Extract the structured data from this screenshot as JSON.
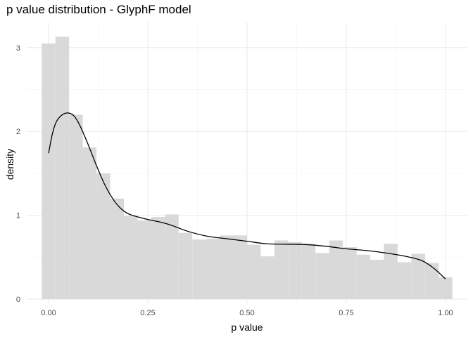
{
  "chart_data": {
    "type": "bar",
    "title": "p value distribution - GlyphF model",
    "xlabel": "p value",
    "ylabel": "density",
    "xlim": [
      -0.055,
      1.055
    ],
    "ylim": [
      -0.05,
      3.3
    ],
    "x_ticks": [
      0.0,
      0.25,
      0.5,
      0.75,
      1.0
    ],
    "x_tick_labels": [
      "0.00",
      "0.25",
      "0.50",
      "0.75",
      "1.00"
    ],
    "y_ticks": [
      0,
      1,
      2,
      3
    ],
    "y_tick_labels": [
      "0",
      "1",
      "2",
      "3"
    ],
    "grid": true,
    "legend": "none",
    "bin_width": 0.0345,
    "bins": [
      {
        "x0": -0.0172,
        "x1": 0.0172,
        "density": 3.05
      },
      {
        "x0": 0.0172,
        "x1": 0.0517,
        "density": 3.13
      },
      {
        "x0": 0.0517,
        "x1": 0.0862,
        "density": 2.2
      },
      {
        "x0": 0.0862,
        "x1": 0.1207,
        "density": 1.81
      },
      {
        "x0": 0.1207,
        "x1": 0.1552,
        "density": 1.5
      },
      {
        "x0": 0.1552,
        "x1": 0.1897,
        "density": 1.2
      },
      {
        "x0": 0.1897,
        "x1": 0.2241,
        "density": 0.99
      },
      {
        "x0": 0.2241,
        "x1": 0.2586,
        "density": 0.94
      },
      {
        "x0": 0.2586,
        "x1": 0.2931,
        "density": 0.98
      },
      {
        "x0": 0.2931,
        "x1": 0.3276,
        "density": 1.01
      },
      {
        "x0": 0.3276,
        "x1": 0.3621,
        "density": 0.79
      },
      {
        "x0": 0.3621,
        "x1": 0.3966,
        "density": 0.71
      },
      {
        "x0": 0.3966,
        "x1": 0.431,
        "density": 0.72
      },
      {
        "x0": 0.431,
        "x1": 0.4655,
        "density": 0.76
      },
      {
        "x0": 0.4655,
        "x1": 0.5,
        "density": 0.76
      },
      {
        "x0": 0.5,
        "x1": 0.5345,
        "density": 0.65
      },
      {
        "x0": 0.5345,
        "x1": 0.569,
        "density": 0.51
      },
      {
        "x0": 0.569,
        "x1": 0.6034,
        "density": 0.7
      },
      {
        "x0": 0.6034,
        "x1": 0.6379,
        "density": 0.68
      },
      {
        "x0": 0.6379,
        "x1": 0.6724,
        "density": 0.66
      },
      {
        "x0": 0.6724,
        "x1": 0.7069,
        "density": 0.55
      },
      {
        "x0": 0.7069,
        "x1": 0.7414,
        "density": 0.7
      },
      {
        "x0": 0.7414,
        "x1": 0.7759,
        "density": 0.62
      },
      {
        "x0": 0.7759,
        "x1": 0.8103,
        "density": 0.53
      },
      {
        "x0": 0.8103,
        "x1": 0.8448,
        "density": 0.47
      },
      {
        "x0": 0.8448,
        "x1": 0.8793,
        "density": 0.66
      },
      {
        "x0": 0.8793,
        "x1": 0.9138,
        "density": 0.44
      },
      {
        "x0": 0.9138,
        "x1": 0.9483,
        "density": 0.54
      },
      {
        "x0": 0.9483,
        "x1": 0.9828,
        "density": 0.43
      },
      {
        "x0": 0.9828,
        "x1": 1.0172,
        "density": 0.26
      }
    ],
    "density_curve": [
      {
        "x": 0.0,
        "y": 1.74
      },
      {
        "x": 0.01,
        "y": 1.98
      },
      {
        "x": 0.02,
        "y": 2.12
      },
      {
        "x": 0.035,
        "y": 2.2
      },
      {
        "x": 0.05,
        "y": 2.22
      },
      {
        "x": 0.065,
        "y": 2.18
      },
      {
        "x": 0.08,
        "y": 2.06
      },
      {
        "x": 0.1,
        "y": 1.84
      },
      {
        "x": 0.12,
        "y": 1.6
      },
      {
        "x": 0.14,
        "y": 1.38
      },
      {
        "x": 0.16,
        "y": 1.21
      },
      {
        "x": 0.18,
        "y": 1.09
      },
      {
        "x": 0.2,
        "y": 1.02
      },
      {
        "x": 0.225,
        "y": 0.98
      },
      {
        "x": 0.25,
        "y": 0.95
      },
      {
        "x": 0.28,
        "y": 0.92
      },
      {
        "x": 0.31,
        "y": 0.88
      },
      {
        "x": 0.35,
        "y": 0.81
      },
      {
        "x": 0.4,
        "y": 0.75
      },
      {
        "x": 0.45,
        "y": 0.72
      },
      {
        "x": 0.5,
        "y": 0.69
      },
      {
        "x": 0.55,
        "y": 0.66
      },
      {
        "x": 0.6,
        "y": 0.655
      },
      {
        "x": 0.65,
        "y": 0.65
      },
      {
        "x": 0.7,
        "y": 0.63
      },
      {
        "x": 0.75,
        "y": 0.6
      },
      {
        "x": 0.8,
        "y": 0.58
      },
      {
        "x": 0.85,
        "y": 0.55
      },
      {
        "x": 0.9,
        "y": 0.51
      },
      {
        "x": 0.94,
        "y": 0.46
      },
      {
        "x": 0.97,
        "y": 0.37
      },
      {
        "x": 1.0,
        "y": 0.24
      }
    ],
    "colors": {
      "bar_fill": "#d9d9d9",
      "curve": "#000000",
      "grid_major": "#ebebeb",
      "grid_minor": "#f4f4f4",
      "tick_text": "#4d4d4d"
    }
  }
}
